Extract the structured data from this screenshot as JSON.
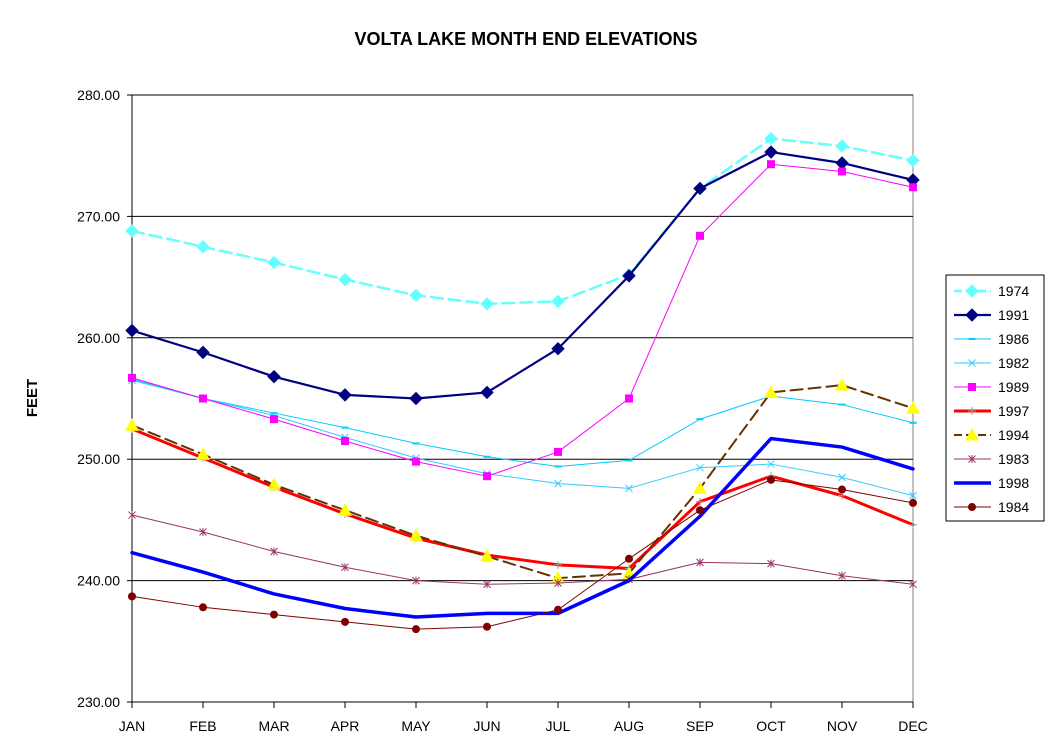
{
  "chart_data": {
    "type": "line",
    "title": "VOLTA LAKE MONTH END ELEVATIONS",
    "xlabel": "",
    "ylabel": "FEET",
    "categories": [
      "JAN",
      "FEB",
      "MAR",
      "APR",
      "MAY",
      "JUN",
      "JUL",
      "AUG",
      "SEP",
      "OCT",
      "NOV",
      "DEC"
    ],
    "ylim": [
      230,
      280
    ],
    "yticks": [
      "230.00",
      "240.00",
      "250.00",
      "260.00",
      "270.00",
      "280.00"
    ],
    "grid": true,
    "legend_position": "right",
    "series": [
      {
        "name": "1974",
        "color": "#66FFFF",
        "marker": "diamond",
        "dash": "dash",
        "width": 2.5,
        "values": [
          268.8,
          267.5,
          266.2,
          264.8,
          263.5,
          262.8,
          263.0,
          265.2,
          272.3,
          276.4,
          275.8,
          274.6
        ]
      },
      {
        "name": "1991",
        "color": "#000080",
        "marker": "diamond",
        "dash": "solid",
        "width": 2.2,
        "values": [
          260.6,
          258.8,
          256.8,
          255.3,
          255.0,
          255.5,
          259.1,
          265.1,
          272.3,
          275.3,
          274.4,
          273.0
        ]
      },
      {
        "name": "1986",
        "color": "#00CCFF",
        "marker": "dash",
        "dash": "solid",
        "width": 1,
        "values": [
          256.6,
          255.0,
          253.8,
          252.6,
          251.3,
          250.2,
          249.4,
          249.9,
          253.3,
          255.2,
          254.5,
          253.0
        ]
      },
      {
        "name": "1982",
        "color": "#33CCFF",
        "marker": "x",
        "dash": "solid",
        "width": 1,
        "values": [
          256.5,
          255.0,
          253.6,
          251.8,
          250.1,
          248.8,
          248.0,
          247.6,
          249.3,
          249.6,
          248.5,
          247.0
        ]
      },
      {
        "name": "1989",
        "color": "#FF00FF",
        "marker": "square",
        "dash": "solid",
        "width": 1,
        "values": [
          256.7,
          255.0,
          253.3,
          251.5,
          249.8,
          248.6,
          250.6,
          255.0,
          268.4,
          274.3,
          273.7,
          272.4
        ]
      },
      {
        "name": "1997",
        "color": "#FF0000",
        "marker": "plus",
        "dash": "solid",
        "width": 3,
        "values": [
          252.5,
          250.1,
          247.7,
          245.5,
          243.5,
          242.1,
          241.3,
          241.0,
          246.5,
          248.6,
          247.0,
          244.6
        ]
      },
      {
        "name": "1994",
        "color": "#663300",
        "marker": "triangle",
        "dash": "dash",
        "width": 2,
        "values": [
          252.8,
          250.4,
          247.9,
          245.8,
          243.7,
          242.0,
          240.2,
          240.6,
          247.6,
          255.5,
          256.1,
          254.2
        ]
      },
      {
        "name": "1983",
        "color": "#993366",
        "marker": "asterisk",
        "dash": "solid",
        "width": 1,
        "values": [
          245.4,
          244.0,
          242.4,
          241.1,
          240.0,
          239.7,
          239.8,
          240.1,
          241.5,
          241.4,
          240.4,
          239.7
        ]
      },
      {
        "name": "1998",
        "color": "#0000FF",
        "marker": "none",
        "dash": "solid",
        "width": 3.5,
        "values": [
          242.3,
          240.7,
          238.9,
          237.7,
          237.0,
          237.3,
          237.3,
          240.0,
          245.3,
          251.7,
          251.0,
          249.2
        ]
      },
      {
        "name": "1984",
        "color": "#800000",
        "marker": "circle",
        "dash": "solid",
        "width": 1,
        "values": [
          238.7,
          237.8,
          237.2,
          236.6,
          236.0,
          236.2,
          237.6,
          241.8,
          245.8,
          248.3,
          247.5,
          246.4
        ]
      }
    ]
  }
}
